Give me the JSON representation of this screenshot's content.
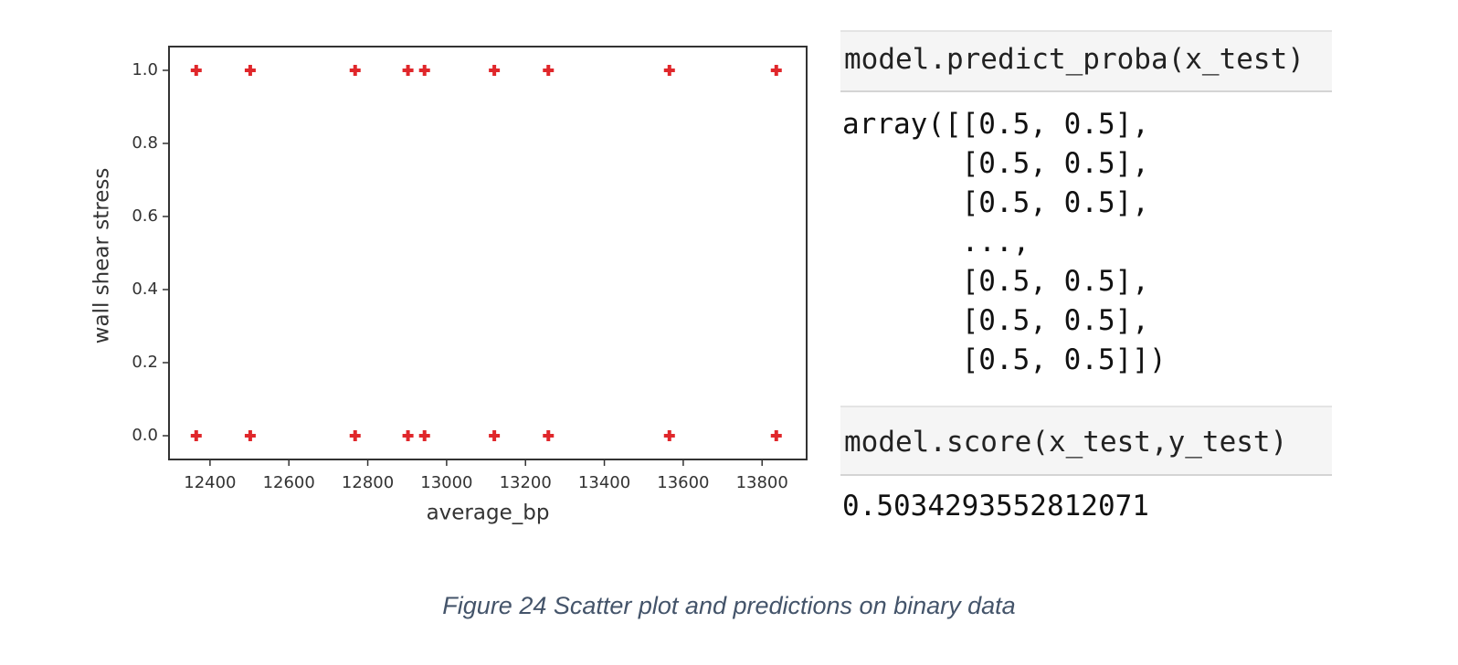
{
  "chart_data": {
    "type": "scatter",
    "xlabel": "average_bp",
    "ylabel": "wall shear stress",
    "color": "#e0272b",
    "x": [
      12365,
      12502,
      12768,
      12902,
      12944,
      13121,
      13258,
      13565,
      13836,
      12365,
      12502,
      12768,
      12902,
      12944,
      13121,
      13258,
      13565,
      13836
    ],
    "values": [
      1,
      1,
      1,
      1,
      1,
      1,
      1,
      1,
      1,
      0,
      0,
      0,
      0,
      0,
      0,
      0,
      0,
      0
    ],
    "xlim": [
      12296,
      13913
    ],
    "ylim": [
      -0.065,
      1.065
    ],
    "xticks": [
      12400,
      12600,
      12800,
      13000,
      13200,
      13400,
      13600,
      13800
    ],
    "yticks": [
      {
        "value": 0,
        "label": "0.0"
      },
      0.2,
      0.4,
      0.6,
      0.8,
      {
        "value": 1,
        "label": "1.0"
      }
    ]
  },
  "code_cells": [
    {
      "input": "model.predict_proba(x_test)",
      "output": [
        "array([[0.5, 0.5],",
        "       [0.5, 0.5],",
        "       [0.5, 0.5],",
        "       ...,",
        "       [0.5, 0.5],",
        "       [0.5, 0.5],",
        "       [0.5, 0.5]])"
      ]
    },
    {
      "input": "model.score(x_test,y_test)",
      "output": [
        "0.5034293552812071"
      ]
    }
  ],
  "caption": "Figure 24 Scatter plot and predictions on binary data"
}
